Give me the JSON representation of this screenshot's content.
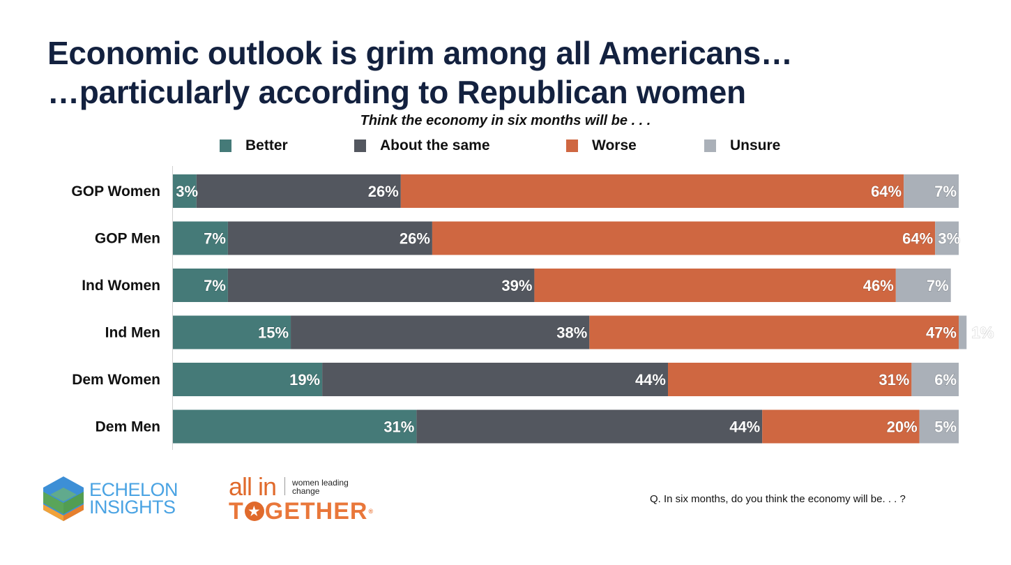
{
  "slide": {
    "title_line1": "Economic outlook is grim among all Americans…",
    "title_line2": "…particularly according to Republican women",
    "footnote": "Q. In six months, do you think the economy will be. . . ?",
    "logos": {
      "echelon_line1": "ECHELON",
      "echelon_line2": "INSIGHTS",
      "allin_word": "all in",
      "allin_tagline1": "women leading",
      "allin_tagline2": "change",
      "together_pre": "T",
      "together_star": "★",
      "together_post": "GETHER",
      "registered": "®"
    }
  },
  "chart_data": {
    "type": "bar",
    "orientation": "horizontal",
    "stacked": true,
    "title": "Economic outlook is grim among all Americans… …particularly according to Republican women",
    "subtitle": "Think the economy in six months will be . . .",
    "xlabel": "",
    "ylabel": "",
    "xlim": [
      0,
      100
    ],
    "grid": false,
    "legend_position": "top",
    "categories": [
      "GOP Women",
      "GOP Men",
      "Ind Women",
      "Ind Men",
      "Dem Women",
      "Dem Men"
    ],
    "series": [
      {
        "name": "Better",
        "color": "#457a78",
        "values": [
          3,
          7,
          7,
          15,
          19,
          31
        ]
      },
      {
        "name": "About the same",
        "color": "#53575f",
        "values": [
          26,
          26,
          39,
          38,
          44,
          44
        ]
      },
      {
        "name": "Worse",
        "color": "#cf6741",
        "values": [
          64,
          64,
          46,
          47,
          31,
          20
        ]
      },
      {
        "name": "Unsure",
        "color": "#aab0b8",
        "values": [
          7,
          3,
          7,
          1,
          6,
          5
        ]
      }
    ],
    "value_suffix": "%"
  }
}
